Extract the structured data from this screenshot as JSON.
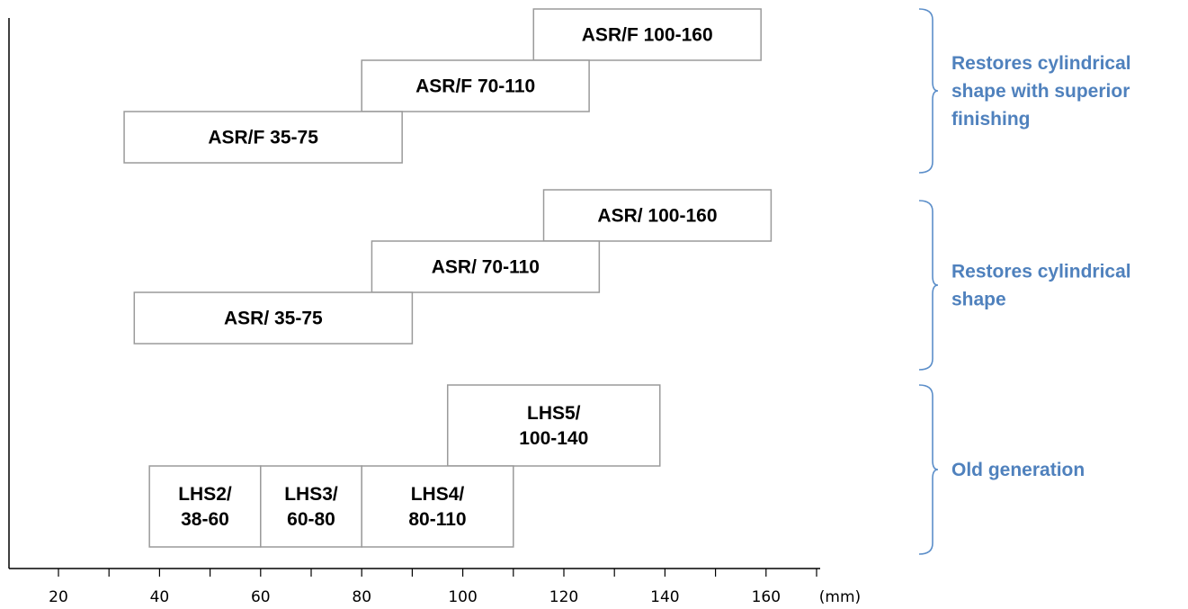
{
  "chart_data": {
    "type": "range-bar",
    "xlabel": "(mm)",
    "xlim": [
      10,
      170
    ],
    "xticks": [
      20,
      40,
      60,
      80,
      100,
      120,
      140,
      160
    ],
    "bars": [
      {
        "label": [
          "ASR/F 100-160"
        ],
        "start": 114,
        "end": 159,
        "group": "superior"
      },
      {
        "label": [
          "ASR/F 70-110"
        ],
        "start": 80,
        "end": 125,
        "group": "superior"
      },
      {
        "label": [
          "ASR/F 35-75"
        ],
        "start": 33,
        "end": 88,
        "group": "superior"
      },
      {
        "label": [
          "ASR/ 100-160"
        ],
        "start": 116,
        "end": 161,
        "group": "cylindrical"
      },
      {
        "label": [
          "ASR/ 70-110"
        ],
        "start": 82,
        "end": 127,
        "group": "cylindrical"
      },
      {
        "label": [
          "ASR/ 35-75"
        ],
        "start": 35,
        "end": 90,
        "group": "cylindrical"
      },
      {
        "label": [
          "LHS5/",
          "100-140"
        ],
        "start": 97,
        "end": 139,
        "group": "old"
      },
      {
        "label": [
          "LHS2/",
          "38-60"
        ],
        "start": 38,
        "end": 60,
        "group": "old"
      },
      {
        "label": [
          "LHS3/",
          "60-80"
        ],
        "start": 60,
        "end": 80,
        "group": "old"
      },
      {
        "label": [
          "LHS4/",
          "80-110"
        ],
        "start": 80,
        "end": 110,
        "group": "old"
      }
    ],
    "groups": [
      {
        "id": "superior",
        "label": [
          "Restores cylindrical",
          "shape with superior",
          "finishing"
        ]
      },
      {
        "id": "cylindrical",
        "label": [
          "Restores cylindrical",
          "shape"
        ]
      },
      {
        "id": "old",
        "label": [
          "Old generation"
        ]
      }
    ],
    "colors": {
      "group_label": "#4f81bd",
      "brace": "#5b8ec9",
      "bar_border": "#9a9a9a"
    }
  }
}
